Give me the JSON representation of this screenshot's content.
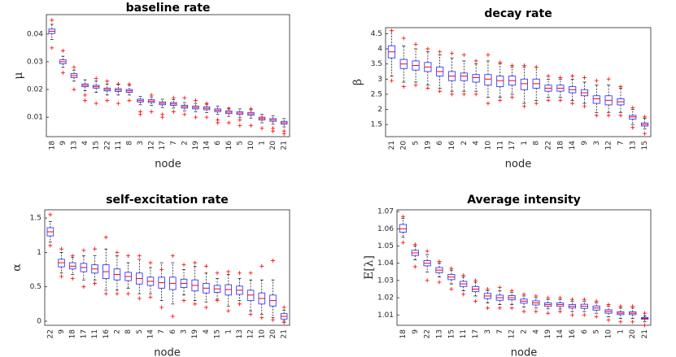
{
  "chart_data": [
    {
      "type": "box",
      "title": "baseline rate",
      "xlabel": "node",
      "ylabel": "μ",
      "categories": [
        "18",
        "9",
        "13",
        "4",
        "15",
        "22",
        "11",
        "8",
        "3",
        "12",
        "17",
        "7",
        "2",
        "19",
        "14",
        "6",
        "16",
        "5",
        "10",
        "1",
        "20",
        "21"
      ],
      "median": [
        0.041,
        0.03,
        0.025,
        0.0215,
        0.021,
        0.02,
        0.0198,
        0.0195,
        0.016,
        0.0158,
        0.015,
        0.0148,
        0.0138,
        0.0135,
        0.0132,
        0.0125,
        0.0118,
        0.0115,
        0.0112,
        0.0095,
        0.009,
        0.008
      ],
      "q1": [
        0.0402,
        0.0293,
        0.0243,
        0.021,
        0.0205,
        0.0195,
        0.0193,
        0.019,
        0.0155,
        0.0153,
        0.0145,
        0.0143,
        0.0133,
        0.013,
        0.0127,
        0.012,
        0.0113,
        0.011,
        0.0107,
        0.009,
        0.0085,
        0.0075
      ],
      "q3": [
        0.0418,
        0.0307,
        0.0257,
        0.022,
        0.0215,
        0.0205,
        0.0203,
        0.02,
        0.0165,
        0.0163,
        0.0155,
        0.0153,
        0.0143,
        0.014,
        0.0137,
        0.013,
        0.0123,
        0.012,
        0.0117,
        0.01,
        0.0095,
        0.0085
      ],
      "whislo": [
        0.038,
        0.028,
        0.023,
        0.0195,
        0.019,
        0.018,
        0.018,
        0.018,
        0.0145,
        0.0143,
        0.0135,
        0.0133,
        0.0123,
        0.012,
        0.0117,
        0.011,
        0.0103,
        0.01,
        0.0097,
        0.008,
        0.0075,
        0.0065
      ],
      "whishi": [
        0.0435,
        0.032,
        0.027,
        0.0235,
        0.023,
        0.022,
        0.0218,
        0.0215,
        0.0175,
        0.0173,
        0.0165,
        0.0163,
        0.0153,
        0.015,
        0.0147,
        0.014,
        0.0133,
        0.013,
        0.0127,
        0.011,
        0.0105,
        0.0095
      ],
      "fliers": [
        [
          0.035,
          0.045
        ],
        [
          0.026,
          0.034
        ],
        [
          0.02,
          0.028
        ],
        [
          0.016,
          0.018
        ],
        [
          0.015,
          0.024
        ],
        [
          0.016,
          0.023
        ],
        [
          0.015,
          0.022
        ],
        [
          0.016,
          0.022
        ],
        [
          0.012,
          0.011
        ],
        [
          0.012,
          0.018
        ],
        [
          0.011,
          0.01
        ],
        [
          0.012,
          0.017
        ],
        [
          0.011,
          0.017
        ],
        [
          0.01,
          0.016
        ],
        [
          0.01,
          0.015
        ],
        [
          0.008,
          0.009
        ],
        [
          0.008,
          0.013
        ],
        [
          0.007,
          0.009
        ],
        [
          0.007,
          0.013
        ],
        [
          0.006,
          0.01
        ],
        [
          0.006,
          0.005
        ],
        [
          0.004,
          0.005
        ]
      ],
      "ylim": [
        0.003,
        0.047
      ],
      "yticks": [
        0.01,
        0.02,
        0.03,
        0.04
      ],
      "box_color": "#3a3aff",
      "median_color": "#ff0000",
      "flier_color": "#ff0000"
    },
    {
      "type": "box",
      "title": "decay rate",
      "xlabel": "node",
      "ylabel": "β",
      "categories": [
        "21",
        "20",
        "5",
        "19",
        "6",
        "16",
        "2",
        "4",
        "10",
        "11",
        "17",
        "1",
        "8",
        "22",
        "18",
        "14",
        "9",
        "3",
        "12",
        "7",
        "13",
        "15"
      ],
      "median": [
        3.9,
        3.5,
        3.45,
        3.4,
        3.25,
        3.1,
        3.1,
        3.05,
        3.0,
        2.95,
        2.95,
        2.85,
        2.85,
        2.7,
        2.7,
        2.65,
        2.55,
        2.35,
        2.3,
        2.25,
        1.75,
        1.5
      ],
      "q1": [
        3.7,
        3.35,
        3.3,
        3.25,
        3.1,
        2.95,
        2.95,
        2.9,
        2.8,
        2.75,
        2.8,
        2.65,
        2.7,
        2.6,
        2.6,
        2.55,
        2.45,
        2.2,
        2.15,
        2.15,
        1.68,
        1.45
      ],
      "q3": [
        4.1,
        3.65,
        3.6,
        3.55,
        3.4,
        3.25,
        3.2,
        3.15,
        3.15,
        3.1,
        3.1,
        3.0,
        3.0,
        2.8,
        2.8,
        2.75,
        2.65,
        2.45,
        2.45,
        2.35,
        1.8,
        1.55
      ],
      "whislo": [
        3.1,
        2.9,
        2.9,
        2.8,
        2.7,
        2.6,
        2.6,
        2.6,
        2.4,
        2.4,
        2.5,
        2.2,
        2.3,
        2.4,
        2.4,
        2.3,
        2.2,
        1.9,
        1.9,
        1.9,
        1.5,
        1.35
      ],
      "whishi": [
        4.6,
        4.1,
        4.0,
        3.9,
        3.8,
        3.7,
        3.6,
        3.5,
        3.6,
        3.5,
        3.4,
        3.4,
        3.4,
        3.0,
        3.0,
        3.0,
        2.9,
        2.8,
        2.8,
        2.7,
        2.0,
        1.7
      ],
      "fliers": [
        [
          2.95,
          4.6
        ],
        [
          2.75,
          4.35
        ],
        [
          2.8,
          4.15
        ],
        [
          2.7,
          4.0
        ],
        [
          2.6,
          3.9
        ],
        [
          2.5,
          3.85
        ],
        [
          2.5,
          3.8
        ],
        [
          2.5,
          3.6
        ],
        [
          2.2,
          3.8
        ],
        [
          2.3,
          3.55
        ],
        [
          2.4,
          3.45
        ],
        [
          2.1,
          3.45
        ],
        [
          2.2,
          3.4
        ],
        [
          2.3,
          3.1
        ],
        [
          2.3,
          3.05
        ],
        [
          2.2,
          3.1
        ],
        [
          2.1,
          3.05
        ],
        [
          1.8,
          2.95
        ],
        [
          1.8,
          3.0
        ],
        [
          1.8,
          2.75
        ],
        [
          1.4,
          2.05
        ],
        [
          1.2,
          1.75
        ]
      ],
      "ylim": [
        1.1,
        4.7
      ],
      "yticks": [
        1.5,
        2,
        2.5,
        3,
        3.5,
        4,
        4.5
      ],
      "box_color": "#3a3aff",
      "median_color": "#ff0000",
      "flier_color": "#ff0000"
    },
    {
      "type": "box",
      "title": "self-excitation rate",
      "xlabel": "node",
      "ylabel": "α",
      "categories": [
        "22",
        "9",
        "18",
        "17",
        "11",
        "16",
        "2",
        "8",
        "5",
        "14",
        "7",
        "6",
        "3",
        "19",
        "4",
        "15",
        "1",
        "13",
        "12",
        "10",
        "20",
        "21"
      ],
      "median": [
        1.3,
        0.85,
        0.8,
        0.78,
        0.76,
        0.72,
        0.68,
        0.65,
        0.62,
        0.58,
        0.56,
        0.55,
        0.55,
        0.52,
        0.48,
        0.47,
        0.46,
        0.45,
        0.38,
        0.33,
        0.3,
        0.07
      ],
      "q1": [
        1.24,
        0.79,
        0.76,
        0.72,
        0.7,
        0.62,
        0.6,
        0.59,
        0.54,
        0.52,
        0.48,
        0.46,
        0.49,
        0.44,
        0.41,
        0.42,
        0.38,
        0.39,
        0.3,
        0.25,
        0.22,
        0.03
      ],
      "q3": [
        1.36,
        0.9,
        0.85,
        0.84,
        0.82,
        0.82,
        0.76,
        0.71,
        0.7,
        0.64,
        0.64,
        0.64,
        0.61,
        0.6,
        0.55,
        0.52,
        0.53,
        0.51,
        0.45,
        0.41,
        0.38,
        0.11
      ],
      "whislo": [
        1.15,
        0.7,
        0.68,
        0.6,
        0.6,
        0.45,
        0.45,
        0.48,
        0.4,
        0.4,
        0.3,
        0.25,
        0.38,
        0.3,
        0.28,
        0.32,
        0.22,
        0.3,
        0.15,
        0.1,
        0.05,
        0
      ],
      "whishi": [
        1.45,
        1.0,
        0.93,
        0.95,
        0.95,
        1.05,
        0.95,
        0.85,
        0.9,
        0.78,
        0.85,
        0.85,
        0.75,
        0.8,
        0.7,
        0.62,
        0.68,
        0.62,
        0.6,
        0.6,
        0.6,
        0.16
      ],
      "fliers": [
        [
          1.1,
          1.55
        ],
        [
          0.65,
          1.05
        ],
        [
          0.62,
          0.95
        ],
        [
          0.5,
          1.03
        ],
        [
          0.55,
          1.05
        ],
        [
          0.4,
          1.22
        ],
        [
          0.4,
          1.0
        ],
        [
          0.4,
          0.95
        ],
        [
          0.33,
          0.95
        ],
        [
          0.35,
          0.85
        ],
        [
          0.2,
          0.75
        ],
        [
          0.07,
          0.95
        ],
        [
          0.3,
          0.82
        ],
        [
          0.25,
          0.85
        ],
        [
          0.2,
          0.8
        ],
        [
          0.3,
          0.7
        ],
        [
          0.15,
          0.72
        ],
        [
          0.25,
          0.7
        ],
        [
          0.1,
          0.7
        ],
        [
          0.05,
          0.8
        ],
        [
          0.02,
          0.88
        ],
        [
          -0.02,
          0.2
        ]
      ],
      "ylim": [
        -0.06,
        1.62
      ],
      "yticks": [
        0,
        0.5,
        1,
        1.5
      ],
      "box_color": "#3a3aff",
      "median_color": "#ff0000",
      "flier_color": "#ff0000"
    },
    {
      "type": "box",
      "title": "Average intensity",
      "xlabel": "node",
      "ylabel": "E[λ]",
      "categories": [
        "18",
        "9",
        "22",
        "13",
        "15",
        "11",
        "17",
        "3",
        "7",
        "12",
        "2",
        "4",
        "19",
        "14",
        "16",
        "6",
        "5",
        "10",
        "1",
        "20",
        "21"
      ],
      "median": [
        1.06,
        1.046,
        1.04,
        1.036,
        1.032,
        1.028,
        1.025,
        1.021,
        1.02,
        1.02,
        1.018,
        1.017,
        1.016,
        1.016,
        1.015,
        1.015,
        1.014,
        1.012,
        1.011,
        1.011,
        1.008
      ],
      "q1": [
        1.058,
        1.0445,
        1.0385,
        1.0345,
        1.0305,
        1.0265,
        1.0235,
        1.0195,
        1.0185,
        1.0188,
        1.0168,
        1.0158,
        1.015,
        1.015,
        1.014,
        1.0138,
        1.0128,
        1.011,
        1.0102,
        1.0102,
        1.0075
      ],
      "q3": [
        1.0625,
        1.0475,
        1.0415,
        1.0375,
        1.0335,
        1.0295,
        1.0265,
        1.0225,
        1.0215,
        1.0212,
        1.0192,
        1.0182,
        1.017,
        1.017,
        1.016,
        1.0162,
        1.0152,
        1.013,
        1.0118,
        1.0118,
        1.0085
      ],
      "whislo": [
        1.055,
        1.042,
        1.035,
        1.032,
        1.028,
        1.024,
        1.021,
        1.017,
        1.016,
        1.016,
        1.0145,
        1.014,
        1.0135,
        1.0135,
        1.012,
        1.012,
        1.011,
        1.009,
        1.008,
        1.008,
        1.006
      ],
      "whishi": [
        1.066,
        1.05,
        1.045,
        1.04,
        1.036,
        1.032,
        1.029,
        1.024,
        1.024,
        1.023,
        1.021,
        1.02,
        1.019,
        1.019,
        1.018,
        1.018,
        1.017,
        1.015,
        1.014,
        1.014,
        1.0095
      ],
      "fliers": [
        [
          1.052,
          1.067
        ],
        [
          1.038,
          1.051
        ],
        [
          1.03,
          1.047
        ],
        [
          1.029,
          1.041
        ],
        [
          1.025,
          1.037
        ],
        [
          1.022,
          1.033
        ],
        [
          1.018,
          1.03
        ],
        [
          1.014,
          1.025
        ],
        [
          1.014,
          1.026
        ],
        [
          1.014,
          1.024
        ],
        [
          1.012,
          1.022
        ],
        [
          1.012,
          1.021
        ],
        [
          1.011,
          1.02
        ],
        [
          1.012,
          1.02
        ],
        [
          1.01,
          1.019
        ],
        [
          1.01,
          1.019
        ],
        [
          1.009,
          1.018
        ],
        [
          1.007,
          1.016
        ],
        [
          1.006,
          1.015
        ],
        [
          1.006,
          1.015
        ],
        [
          1.004,
          1.011
        ]
      ],
      "ylim": [
        1.004,
        1.071
      ],
      "yticks": [
        1.01,
        1.02,
        1.03,
        1.04,
        1.05,
        1.06,
        1.07
      ],
      "box_color": "#3a3aff",
      "median_color": "#ff0000",
      "flier_color": "#ff0000"
    }
  ]
}
